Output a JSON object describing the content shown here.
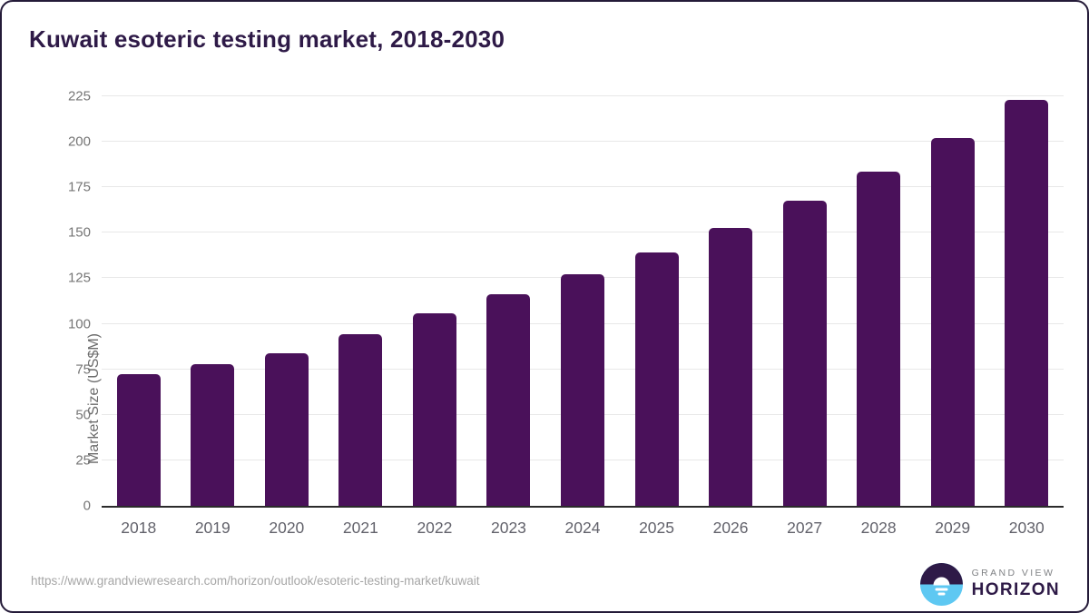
{
  "header": {
    "title": "Kuwait esoteric testing market, 2018-2030"
  },
  "chart_data": {
    "type": "bar",
    "title": "Kuwait esoteric testing market, 2018-2030",
    "categories": [
      "2018",
      "2019",
      "2020",
      "2021",
      "2022",
      "2023",
      "2024",
      "2025",
      "2026",
      "2027",
      "2028",
      "2029",
      "2030"
    ],
    "values": [
      72.2,
      77.7,
      84.0,
      94.2,
      105.6,
      116.3,
      127.2,
      139.2,
      152.7,
      167.4,
      183.7,
      202.0,
      222.8
    ],
    "xlabel": "",
    "ylabel": "Market Size (US$M)",
    "ylim": [
      0,
      225
    ],
    "ytick_step": 25,
    "yticks": [
      0,
      25,
      50,
      75,
      100,
      125,
      150,
      175,
      200,
      225
    ],
    "grid": true,
    "legend": "none",
    "bar_color": "#4a115a"
  },
  "footer": {
    "source_url": "https://www.grandviewresearch.com/horizon/outlook/esoteric-testing-market/kuwait",
    "logo": {
      "icon": "sun-over-horizon-icon",
      "line1": "GRAND VIEW",
      "line2": "HORIZON"
    }
  },
  "colors": {
    "bar": "#4a115a",
    "title_text": "#2e1a47",
    "tick_text": "#757575",
    "xtick_text": "#62626b",
    "gridline": "#e8e8e8",
    "axis_line": "#2b2b2b",
    "url_text": "#a6a6a6",
    "card_border": "#241a38",
    "logo_blue": "#5ec8f2",
    "logo_dark": "#2e1a47",
    "logo_gray": "#808285"
  }
}
